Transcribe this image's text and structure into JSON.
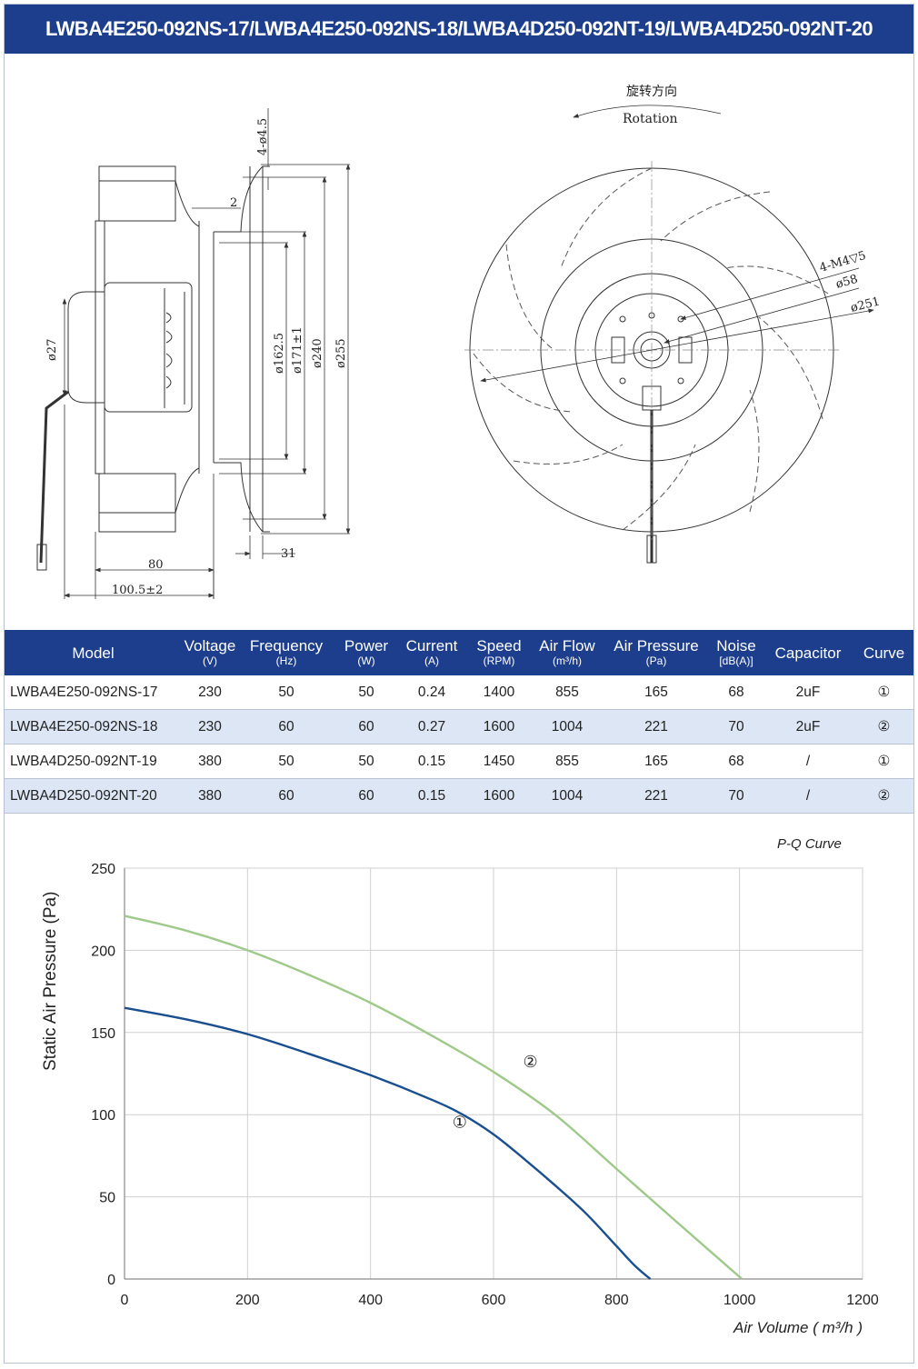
{
  "header": {
    "title": "LWBA4E250-092NS-17/LWBA4E250-092NS-18/LWBA4D250-092NT-19/LWBA4D250-092NT-20"
  },
  "drawing": {
    "dimensions": {
      "holes": "4-ø4.5",
      "gap": "2",
      "d27": "ø27",
      "d162": "ø162.5",
      "d171": "ø171±1",
      "d240": "ø240",
      "d255": "ø255",
      "w31": "31",
      "w80": "80",
      "w100": "100.5±2",
      "thread": "4-M4▽5",
      "d58": "ø58",
      "d251": "ø251"
    },
    "rotation_cn": "旋转方向",
    "rotation_en": "Rotation"
  },
  "table": {
    "headers": [
      {
        "label": "Model",
        "unit": ""
      },
      {
        "label": "Voltage",
        "unit": "(V)"
      },
      {
        "label": "Frequency",
        "unit": "(Hz)"
      },
      {
        "label": "Power",
        "unit": "(W)"
      },
      {
        "label": "Current",
        "unit": "(A)"
      },
      {
        "label": "Speed",
        "unit": "(RPM)"
      },
      {
        "label": "Air Flow",
        "unit": "(m³/h)"
      },
      {
        "label": "Air Pressure",
        "unit": "(Pa)"
      },
      {
        "label": "Noise",
        "unit": "[dB(A)]"
      },
      {
        "label": "Capacitor",
        "unit": ""
      },
      {
        "label": "Curve",
        "unit": ""
      }
    ],
    "rows": [
      [
        "LWBA4E250-092NS-17",
        "230",
        "50",
        "50",
        "0.24",
        "1400",
        "855",
        "165",
        "68",
        "2uF",
        "①"
      ],
      [
        "LWBA4E250-092NS-18",
        "230",
        "60",
        "60",
        "0.27",
        "1600",
        "1004",
        "221",
        "70",
        "2uF",
        "②"
      ],
      [
        "LWBA4D250-092NT-19",
        "380",
        "50",
        "50",
        "0.15",
        "1450",
        "855",
        "165",
        "68",
        "/",
        "①"
      ],
      [
        "LWBA4D250-092NT-20",
        "380",
        "60",
        "60",
        "0.15",
        "1600",
        "1004",
        "221",
        "70",
        "/",
        "②"
      ]
    ]
  },
  "chart_data": {
    "type": "line",
    "title": "P-Q Curve",
    "xlabel": "Air Volume ( m³/h )",
    "ylabel": "Static Air Pressure  (Pa)",
    "xlim": [
      0,
      1200
    ],
    "ylim": [
      0,
      250
    ],
    "xticks": [
      0,
      200,
      400,
      600,
      800,
      1000,
      1200
    ],
    "yticks": [
      0,
      50,
      100,
      150,
      200,
      250
    ],
    "grid": true,
    "series": [
      {
        "name": "①",
        "color": "#1a4f8f",
        "label_at": [
          545,
          92
        ],
        "x": [
          0,
          100,
          200,
          300,
          400,
          500,
          550,
          600,
          650,
          700,
          750,
          800,
          830,
          855
        ],
        "y": [
          165,
          158,
          149,
          137,
          124,
          109,
          100,
          88,
          73,
          57,
          40,
          20,
          8,
          0
        ]
      },
      {
        "name": "②",
        "color": "#9ec98a",
        "label_at": [
          660,
          129
        ],
        "x": [
          0,
          100,
          200,
          300,
          400,
          500,
          600,
          700,
          800,
          900,
          1004
        ],
        "y": [
          221,
          212,
          200,
          185,
          168,
          148,
          126,
          100,
          67,
          34,
          0
        ]
      }
    ]
  }
}
